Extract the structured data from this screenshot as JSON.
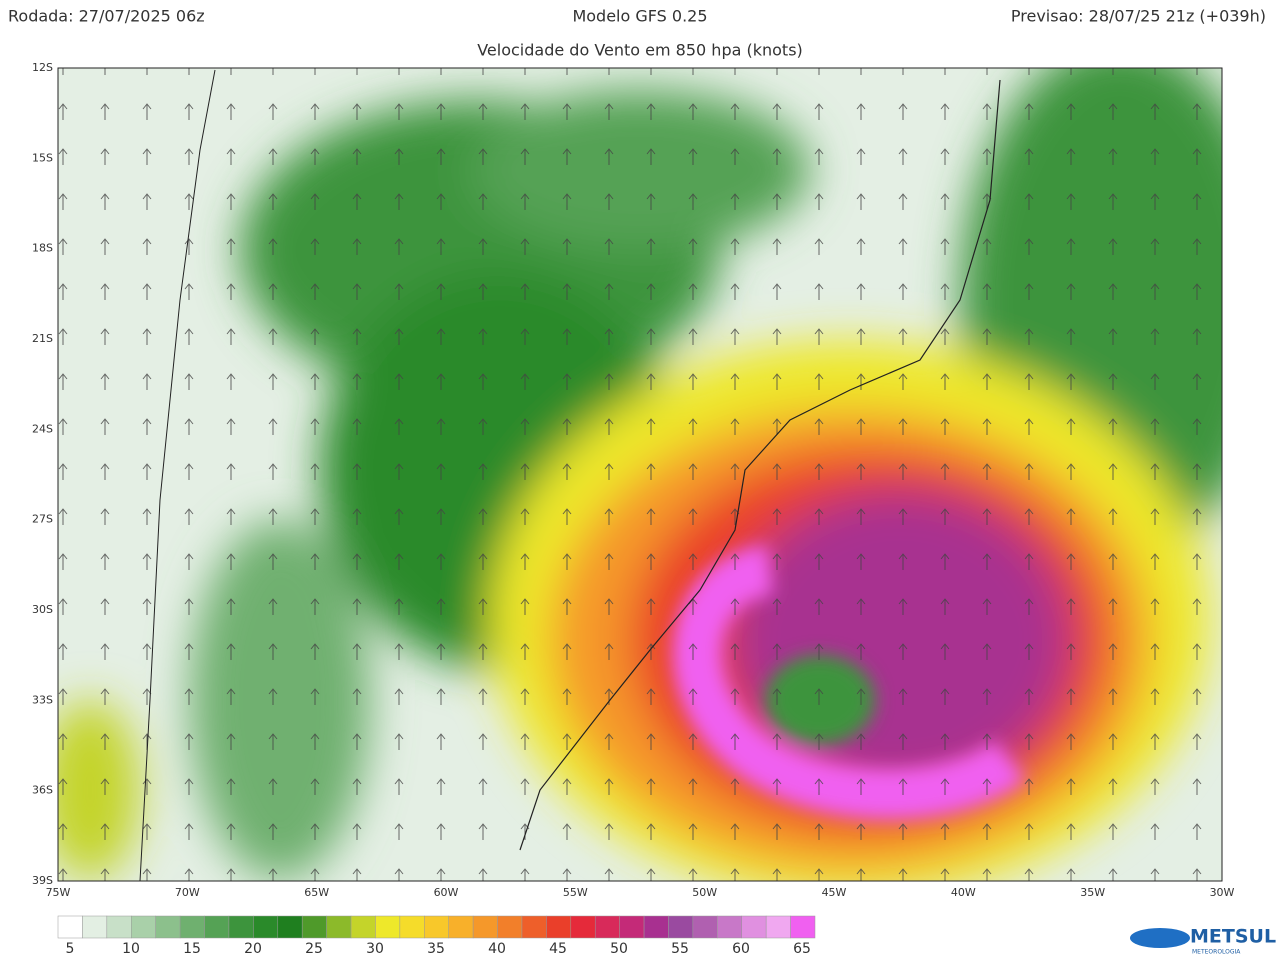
{
  "header": {
    "run": "Rodada: 27/07/2025 06z",
    "model": "Modelo GFS 0.25",
    "forecast": "Previsao: 28/07/25 21z (+039h)",
    "subtitle": "Velocidade do Vento em 850 hpa (knots)"
  },
  "map": {
    "lat_labels": [
      "12S",
      "15S",
      "18S",
      "21S",
      "24S",
      "27S",
      "30S",
      "33S",
      "36S",
      "39S"
    ],
    "lon_labels": [
      "75W",
      "70W",
      "65W",
      "60W",
      "55W",
      "50W",
      "45W",
      "40W",
      "35W",
      "30W"
    ]
  },
  "colorbar": {
    "labels": [
      5,
      10,
      15,
      20,
      25,
      30,
      35,
      40,
      45,
      50,
      55,
      60,
      65
    ],
    "colors": [
      "#ffffff",
      "#e3efe3",
      "#c8e0c8",
      "#a9d0a9",
      "#8cc08c",
      "#6fb06f",
      "#55a255",
      "#3d943d",
      "#2a8a2a",
      "#1f7f1f",
      "#4f9a2a",
      "#8cba2a",
      "#c4d42a",
      "#eee82a",
      "#f5dc2a",
      "#f8c82a",
      "#f8b02a",
      "#f5982a",
      "#f27f2a",
      "#ee5f2a",
      "#ea3f2a",
      "#e52a3a",
      "#d82a5a",
      "#c42a78",
      "#a83090",
      "#9a4aa0",
      "#b060b0",
      "#c878c8",
      "#e090e0",
      "#f0a8f0",
      "#f060f0"
    ]
  },
  "logo": {
    "name": "METSUL",
    "tagline": "METEOROLOGIA"
  }
}
